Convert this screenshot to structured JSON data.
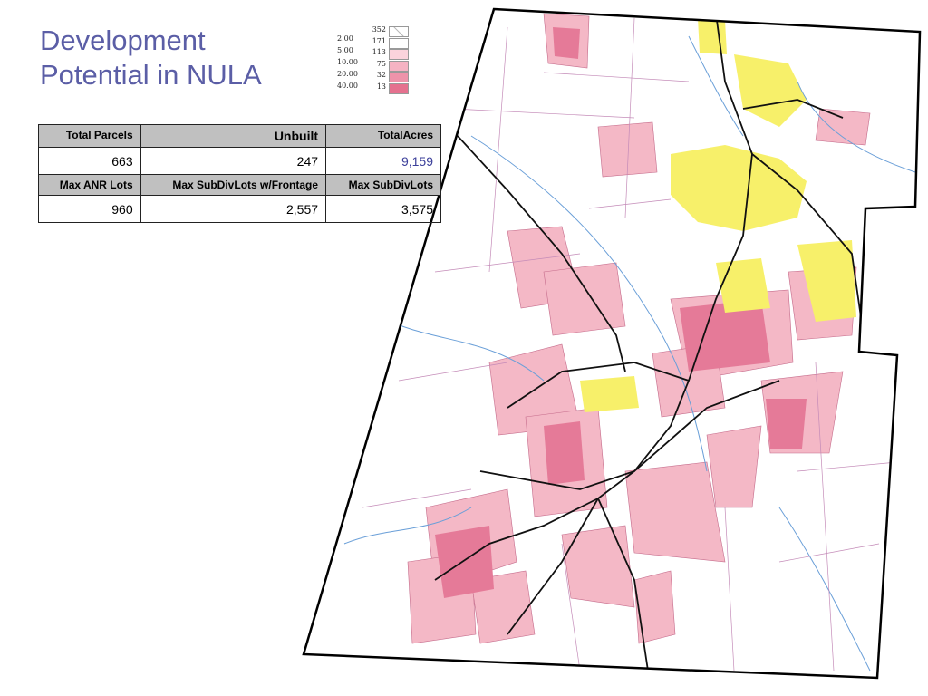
{
  "header": {
    "title": "Development Potential in NULA"
  },
  "legend": {
    "thresholds": [
      "2.00",
      "5.00",
      "10.00",
      "20.00",
      "40.00"
    ],
    "counts": [
      "352",
      "171",
      "113",
      "75",
      "32",
      "13"
    ]
  },
  "table": {
    "rows": [
      [
        "Total Parcels",
        "Unbuilt",
        "TotalAcres"
      ],
      [
        "663",
        "247",
        "9,159"
      ],
      [
        "Max ANR Lots",
        "Max SubDivLots w/Frontage",
        "Max SubDivLots"
      ],
      [
        "960",
        "2,557",
        "3,575"
      ]
    ]
  }
}
